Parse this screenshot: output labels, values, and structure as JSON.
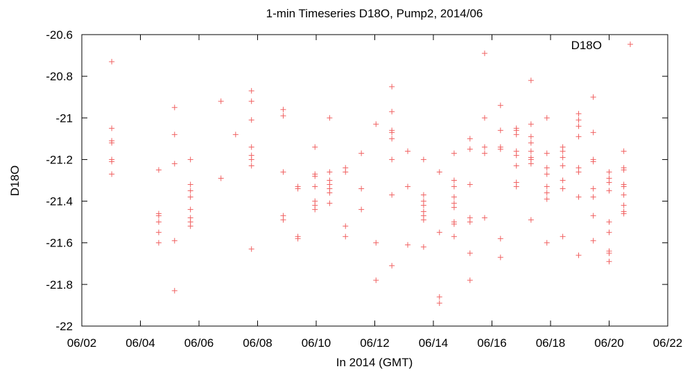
{
  "chart_data": {
    "type": "scatter",
    "title": "1-min Timeseries D18O, Pump2, 2014/06",
    "xlabel": "In 2014 (GMT)",
    "ylabel": "D18O",
    "xlim": [
      "06/02",
      "06/22"
    ],
    "ylim": [
      -22,
      -20.6
    ],
    "x_ticks": [
      "06/02",
      "06/04",
      "06/06",
      "06/08",
      "06/10",
      "06/12",
      "06/14",
      "06/16",
      "06/18",
      "06/20",
      "06/22"
    ],
    "y_ticks": [
      "-20.6",
      "-20.8",
      "-21",
      "-21.2",
      "-21.4",
      "-21.6",
      "-21.8",
      "-22"
    ],
    "grid": false,
    "legend_position": "top-right",
    "marker": "plus",
    "series": [
      {
        "name": "D18O",
        "color": "#f06060",
        "points": [
          [
            "2014-06-03 00:30",
            -20.73
          ],
          [
            "2014-06-03 00:30",
            -21.05
          ],
          [
            "2014-06-03 00:30",
            -21.11
          ],
          [
            "2014-06-03 00:30",
            -21.12
          ],
          [
            "2014-06-03 00:30",
            -21.2
          ],
          [
            "2014-06-03 00:30",
            -21.21
          ],
          [
            "2014-06-03 00:30",
            -21.27
          ],
          [
            "2014-06-04 15:00",
            -21.25
          ],
          [
            "2014-06-04 15:00",
            -21.46
          ],
          [
            "2014-06-04 15:00",
            -21.47
          ],
          [
            "2014-06-04 15:00",
            -21.5
          ],
          [
            "2014-06-04 15:00",
            -21.55
          ],
          [
            "2014-06-04 15:00",
            -21.6
          ],
          [
            "2014-06-05 04:00",
            -20.95
          ],
          [
            "2014-06-05 04:00",
            -21.08
          ],
          [
            "2014-06-05 04:00",
            -21.22
          ],
          [
            "2014-06-05 04:00",
            -21.59
          ],
          [
            "2014-06-05 04:00",
            -21.83
          ],
          [
            "2014-06-05 17:00",
            -21.2
          ],
          [
            "2014-06-05 17:00",
            -21.32
          ],
          [
            "2014-06-05 17:00",
            -21.35
          ],
          [
            "2014-06-05 17:00",
            -21.38
          ],
          [
            "2014-06-05 17:00",
            -21.44
          ],
          [
            "2014-06-05 17:00",
            -21.48
          ],
          [
            "2014-06-05 17:00",
            -21.5
          ],
          [
            "2014-06-05 17:00",
            -21.52
          ],
          [
            "2014-06-06 18:00",
            -20.92
          ],
          [
            "2014-06-06 18:00",
            -21.29
          ],
          [
            "2014-06-07 06:00",
            -21.08
          ],
          [
            "2014-06-07 19:00",
            -20.87
          ],
          [
            "2014-06-07 19:00",
            -20.92
          ],
          [
            "2014-06-07 19:00",
            -21.01
          ],
          [
            "2014-06-07 19:00",
            -21.14
          ],
          [
            "2014-06-07 19:00",
            -21.18
          ],
          [
            "2014-06-07 19:00",
            -21.2
          ],
          [
            "2014-06-07 19:00",
            -21.23
          ],
          [
            "2014-06-07 19:00",
            -21.63
          ],
          [
            "2014-06-08 21:00",
            -20.96
          ],
          [
            "2014-06-08 21:00",
            -20.99
          ],
          [
            "2014-06-08 21:00",
            -21.26
          ],
          [
            "2014-06-08 21:00",
            -21.47
          ],
          [
            "2014-06-08 21:00",
            -21.49
          ],
          [
            "2014-06-09 09:00",
            -21.33
          ],
          [
            "2014-06-09 09:00",
            -21.34
          ],
          [
            "2014-06-09 09:00",
            -21.57
          ],
          [
            "2014-06-09 09:00",
            -21.58
          ],
          [
            "2014-06-09 23:00",
            -21.14
          ],
          [
            "2014-06-09 23:00",
            -21.27
          ],
          [
            "2014-06-09 23:00",
            -21.28
          ],
          [
            "2014-06-09 23:00",
            -21.33
          ],
          [
            "2014-06-09 23:00",
            -21.4
          ],
          [
            "2014-06-09 23:00",
            -21.42
          ],
          [
            "2014-06-09 23:00",
            -21.44
          ],
          [
            "2014-06-10 11:00",
            -21.0
          ],
          [
            "2014-06-10 11:00",
            -21.26
          ],
          [
            "2014-06-10 11:00",
            -21.3
          ],
          [
            "2014-06-10 11:00",
            -21.32
          ],
          [
            "2014-06-10 11:00",
            -21.34
          ],
          [
            "2014-06-10 11:00",
            -21.36
          ],
          [
            "2014-06-10 11:00",
            -21.41
          ],
          [
            "2014-06-11 00:00",
            -21.24
          ],
          [
            "2014-06-11 00:00",
            -21.26
          ],
          [
            "2014-06-11 00:00",
            -21.52
          ],
          [
            "2014-06-11 00:00",
            -21.57
          ],
          [
            "2014-06-11 13:00",
            -21.17
          ],
          [
            "2014-06-11 13:00",
            -21.34
          ],
          [
            "2014-06-11 13:00",
            -21.44
          ],
          [
            "2014-06-12 01:00",
            -21.03
          ],
          [
            "2014-06-12 01:00",
            -21.6
          ],
          [
            "2014-06-12 01:00",
            -21.78
          ],
          [
            "2014-06-12 14:00",
            -20.85
          ],
          [
            "2014-06-12 14:00",
            -20.97
          ],
          [
            "2014-06-12 14:00",
            -21.06
          ],
          [
            "2014-06-12 14:00",
            -21.07
          ],
          [
            "2014-06-12 14:00",
            -21.1
          ],
          [
            "2014-06-12 14:00",
            -21.2
          ],
          [
            "2014-06-12 14:00",
            -21.37
          ],
          [
            "2014-06-12 14:00",
            -21.71
          ],
          [
            "2014-06-13 03:00",
            -21.16
          ],
          [
            "2014-06-13 03:00",
            -21.33
          ],
          [
            "2014-06-13 03:00",
            -21.61
          ],
          [
            "2014-06-13 16:00",
            -21.2
          ],
          [
            "2014-06-13 16:00",
            -21.37
          ],
          [
            "2014-06-13 16:00",
            -21.4
          ],
          [
            "2014-06-13 16:00",
            -21.42
          ],
          [
            "2014-06-13 16:00",
            -21.45
          ],
          [
            "2014-06-13 16:00",
            -21.47
          ],
          [
            "2014-06-13 16:00",
            -21.49
          ],
          [
            "2014-06-13 16:00",
            -21.62
          ],
          [
            "2014-06-14 05:00",
            -21.26
          ],
          [
            "2014-06-14 05:00",
            -21.55
          ],
          [
            "2014-06-14 05:00",
            -21.86
          ],
          [
            "2014-06-14 05:00",
            -21.89
          ],
          [
            "2014-06-14 17:00",
            -21.17
          ],
          [
            "2014-06-14 17:00",
            -21.3
          ],
          [
            "2014-06-14 17:00",
            -21.33
          ],
          [
            "2014-06-14 17:00",
            -21.38
          ],
          [
            "2014-06-14 17:00",
            -21.41
          ],
          [
            "2014-06-14 17:00",
            -21.43
          ],
          [
            "2014-06-14 17:00",
            -21.5
          ],
          [
            "2014-06-14 17:00",
            -21.51
          ],
          [
            "2014-06-14 17:00",
            -21.57
          ],
          [
            "2014-06-15 06:00",
            -21.1
          ],
          [
            "2014-06-15 06:00",
            -21.15
          ],
          [
            "2014-06-15 06:00",
            -21.32
          ],
          [
            "2014-06-15 06:00",
            -21.48
          ],
          [
            "2014-06-15 06:00",
            -21.5
          ],
          [
            "2014-06-15 06:00",
            -21.65
          ],
          [
            "2014-06-15 06:00",
            -21.78
          ],
          [
            "2014-06-15 18:00",
            -20.69
          ],
          [
            "2014-06-15 18:00",
            -21.0
          ],
          [
            "2014-06-15 18:00",
            -21.14
          ],
          [
            "2014-06-15 18:00",
            -21.17
          ],
          [
            "2014-06-15 18:00",
            -21.48
          ],
          [
            "2014-06-16 07:00",
            -20.94
          ],
          [
            "2014-06-16 07:00",
            -21.06
          ],
          [
            "2014-06-16 07:00",
            -21.14
          ],
          [
            "2014-06-16 07:00",
            -21.15
          ],
          [
            "2014-06-16 07:00",
            -21.58
          ],
          [
            "2014-06-16 07:00",
            -21.67
          ],
          [
            "2014-06-16 20:00",
            -21.05
          ],
          [
            "2014-06-16 20:00",
            -21.06
          ],
          [
            "2014-06-16 20:00",
            -21.08
          ],
          [
            "2014-06-16 20:00",
            -21.16
          ],
          [
            "2014-06-16 20:00",
            -21.18
          ],
          [
            "2014-06-16 20:00",
            -21.23
          ],
          [
            "2014-06-16 20:00",
            -21.31
          ],
          [
            "2014-06-16 20:00",
            -21.33
          ],
          [
            "2014-06-17 08:00",
            -20.82
          ],
          [
            "2014-06-17 08:00",
            -21.03
          ],
          [
            "2014-06-17 08:00",
            -21.09
          ],
          [
            "2014-06-17 08:00",
            -21.12
          ],
          [
            "2014-06-17 08:00",
            -21.16
          ],
          [
            "2014-06-17 08:00",
            -21.19
          ],
          [
            "2014-06-17 08:00",
            -21.2
          ],
          [
            "2014-06-17 08:00",
            -21.22
          ],
          [
            "2014-06-17 08:00",
            -21.49
          ],
          [
            "2014-06-17 21:00",
            -21.0
          ],
          [
            "2014-06-17 21:00",
            -21.17
          ],
          [
            "2014-06-17 21:00",
            -21.24
          ],
          [
            "2014-06-17 21:00",
            -21.27
          ],
          [
            "2014-06-17 21:00",
            -21.33
          ],
          [
            "2014-06-17 21:00",
            -21.36
          ],
          [
            "2014-06-17 21:00",
            -21.39
          ],
          [
            "2014-06-17 21:00",
            -21.6
          ],
          [
            "2014-06-18 10:00",
            -21.14
          ],
          [
            "2014-06-18 10:00",
            -21.16
          ],
          [
            "2014-06-18 10:00",
            -21.19
          ],
          [
            "2014-06-18 10:00",
            -21.23
          ],
          [
            "2014-06-18 10:00",
            -21.3
          ],
          [
            "2014-06-18 10:00",
            -21.34
          ],
          [
            "2014-06-18 10:00",
            -21.57
          ],
          [
            "2014-06-18 23:00",
            -20.98
          ],
          [
            "2014-06-18 23:00",
            -21.01
          ],
          [
            "2014-06-18 23:00",
            -21.04
          ],
          [
            "2014-06-18 23:00",
            -21.09
          ],
          [
            "2014-06-18 23:00",
            -21.24
          ],
          [
            "2014-06-18 23:00",
            -21.26
          ],
          [
            "2014-06-18 23:00",
            -21.38
          ],
          [
            "2014-06-18 23:00",
            -21.66
          ],
          [
            "2014-06-19 11:00",
            -20.9
          ],
          [
            "2014-06-19 11:00",
            -21.07
          ],
          [
            "2014-06-19 11:00",
            -21.2
          ],
          [
            "2014-06-19 11:00",
            -21.21
          ],
          [
            "2014-06-19 11:00",
            -21.34
          ],
          [
            "2014-06-19 11:00",
            -21.38
          ],
          [
            "2014-06-19 11:00",
            -21.47
          ],
          [
            "2014-06-19 11:00",
            -21.59
          ],
          [
            "2014-06-20 00:00",
            -21.26
          ],
          [
            "2014-06-20 00:00",
            -21.29
          ],
          [
            "2014-06-20 00:00",
            -21.31
          ],
          [
            "2014-06-20 00:00",
            -21.35
          ],
          [
            "2014-06-20 00:00",
            -21.5
          ],
          [
            "2014-06-20 00:00",
            -21.55
          ],
          [
            "2014-06-20 00:00",
            -21.64
          ],
          [
            "2014-06-20 00:00",
            -21.65
          ],
          [
            "2014-06-20 00:00",
            -21.69
          ],
          [
            "2014-06-20 12:00",
            -21.16
          ],
          [
            "2014-06-20 12:00",
            -21.24
          ],
          [
            "2014-06-20 12:00",
            -21.25
          ],
          [
            "2014-06-20 12:00",
            -21.32
          ],
          [
            "2014-06-20 12:00",
            -21.33
          ],
          [
            "2014-06-20 12:00",
            -21.37
          ],
          [
            "2014-06-20 12:00",
            -21.42
          ],
          [
            "2014-06-20 12:00",
            -21.45
          ],
          [
            "2014-06-20 12:00",
            -21.46
          ]
        ]
      }
    ]
  }
}
